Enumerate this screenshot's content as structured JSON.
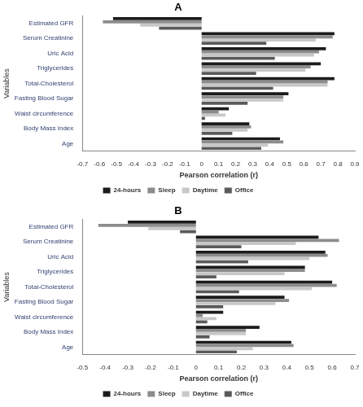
{
  "chart_data": [
    {
      "type": "bar",
      "title": "A",
      "orientation": "horizontal",
      "legend": "bottom",
      "grid": false,
      "x_label": "Pearson correlation (r)",
      "y_label": "Variables",
      "categories": [
        "Estimated GFR",
        "Serum Creatinine",
        "Uric Acid",
        "Triglycerides",
        "Total-Cholesterol",
        "Fasting Blood Sugar",
        "Waist circumference",
        "Body Mass Index",
        "Age"
      ],
      "xlim": [
        -0.7,
        0.9
      ],
      "xticks": [
        -0.7,
        -0.6,
        -0.5,
        -0.4,
        -0.3,
        -0.2,
        -0.1,
        0,
        0.1,
        0.2,
        0.3,
        0.4,
        0.5,
        0.6,
        0.7,
        0.8,
        0.9
      ],
      "series": [
        {
          "name": "24-hours",
          "color": "#1c1c1c",
          "values": [
            -0.52,
            0.78,
            0.73,
            0.7,
            0.78,
            0.51,
            0.16,
            0.28,
            0.46
          ]
        },
        {
          "name": "Sleep",
          "color": "#8c8c8c",
          "values": [
            -0.58,
            0.77,
            0.69,
            0.64,
            0.74,
            0.48,
            0.1,
            0.29,
            0.48
          ]
        },
        {
          "name": "Daytime",
          "color": "#c8c8c8",
          "values": [
            -0.36,
            0.67,
            0.66,
            0.61,
            0.74,
            0.48,
            0.14,
            0.27,
            0.39
          ]
        },
        {
          "name": "Office",
          "color": "#5a5a5a",
          "values": [
            -0.25,
            0.38,
            0.43,
            0.32,
            0.42,
            0.27,
            0.02,
            0.18,
            0.35
          ]
        }
      ]
    },
    {
      "type": "bar",
      "title": "B",
      "orientation": "horizontal",
      "legend": "bottom",
      "grid": false,
      "x_label": "Pearson correlation (r)",
      "y_label": "Variables",
      "categories": [
        "Estimated GFR",
        "Serum Creatinine",
        "Uric Acid",
        "Triglycerides",
        "Total-Cholesterol",
        "Fasting Blood Sugar",
        "Waist circumference",
        "Body Mass Index",
        "Age"
      ],
      "xlim": [
        -0.5,
        0.7
      ],
      "xticks": [
        -0.5,
        -0.4,
        -0.3,
        -0.2,
        -0.1,
        0,
        0.1,
        0.2,
        0.3,
        0.4,
        0.5,
        0.6,
        0.7
      ],
      "series": [
        {
          "name": "24-hours",
          "color": "#1c1c1c",
          "values": [
            -0.3,
            0.54,
            0.57,
            0.48,
            0.6,
            0.39,
            0.12,
            0.28,
            0.42
          ]
        },
        {
          "name": "Sleep",
          "color": "#8c8c8c",
          "values": [
            -0.43,
            0.63,
            0.58,
            0.48,
            0.62,
            0.41,
            0.03,
            0.22,
            0.43
          ]
        },
        {
          "name": "Daytime",
          "color": "#c8c8c8",
          "values": [
            -0.21,
            0.44,
            0.5,
            0.39,
            0.51,
            0.35,
            0.09,
            0.22,
            0.25
          ]
        },
        {
          "name": "Office",
          "color": "#5a5a5a",
          "values": [
            -0.07,
            0.2,
            0.23,
            0.09,
            0.19,
            0.12,
            0.05,
            0.06,
            0.18
          ]
        }
      ]
    }
  ]
}
